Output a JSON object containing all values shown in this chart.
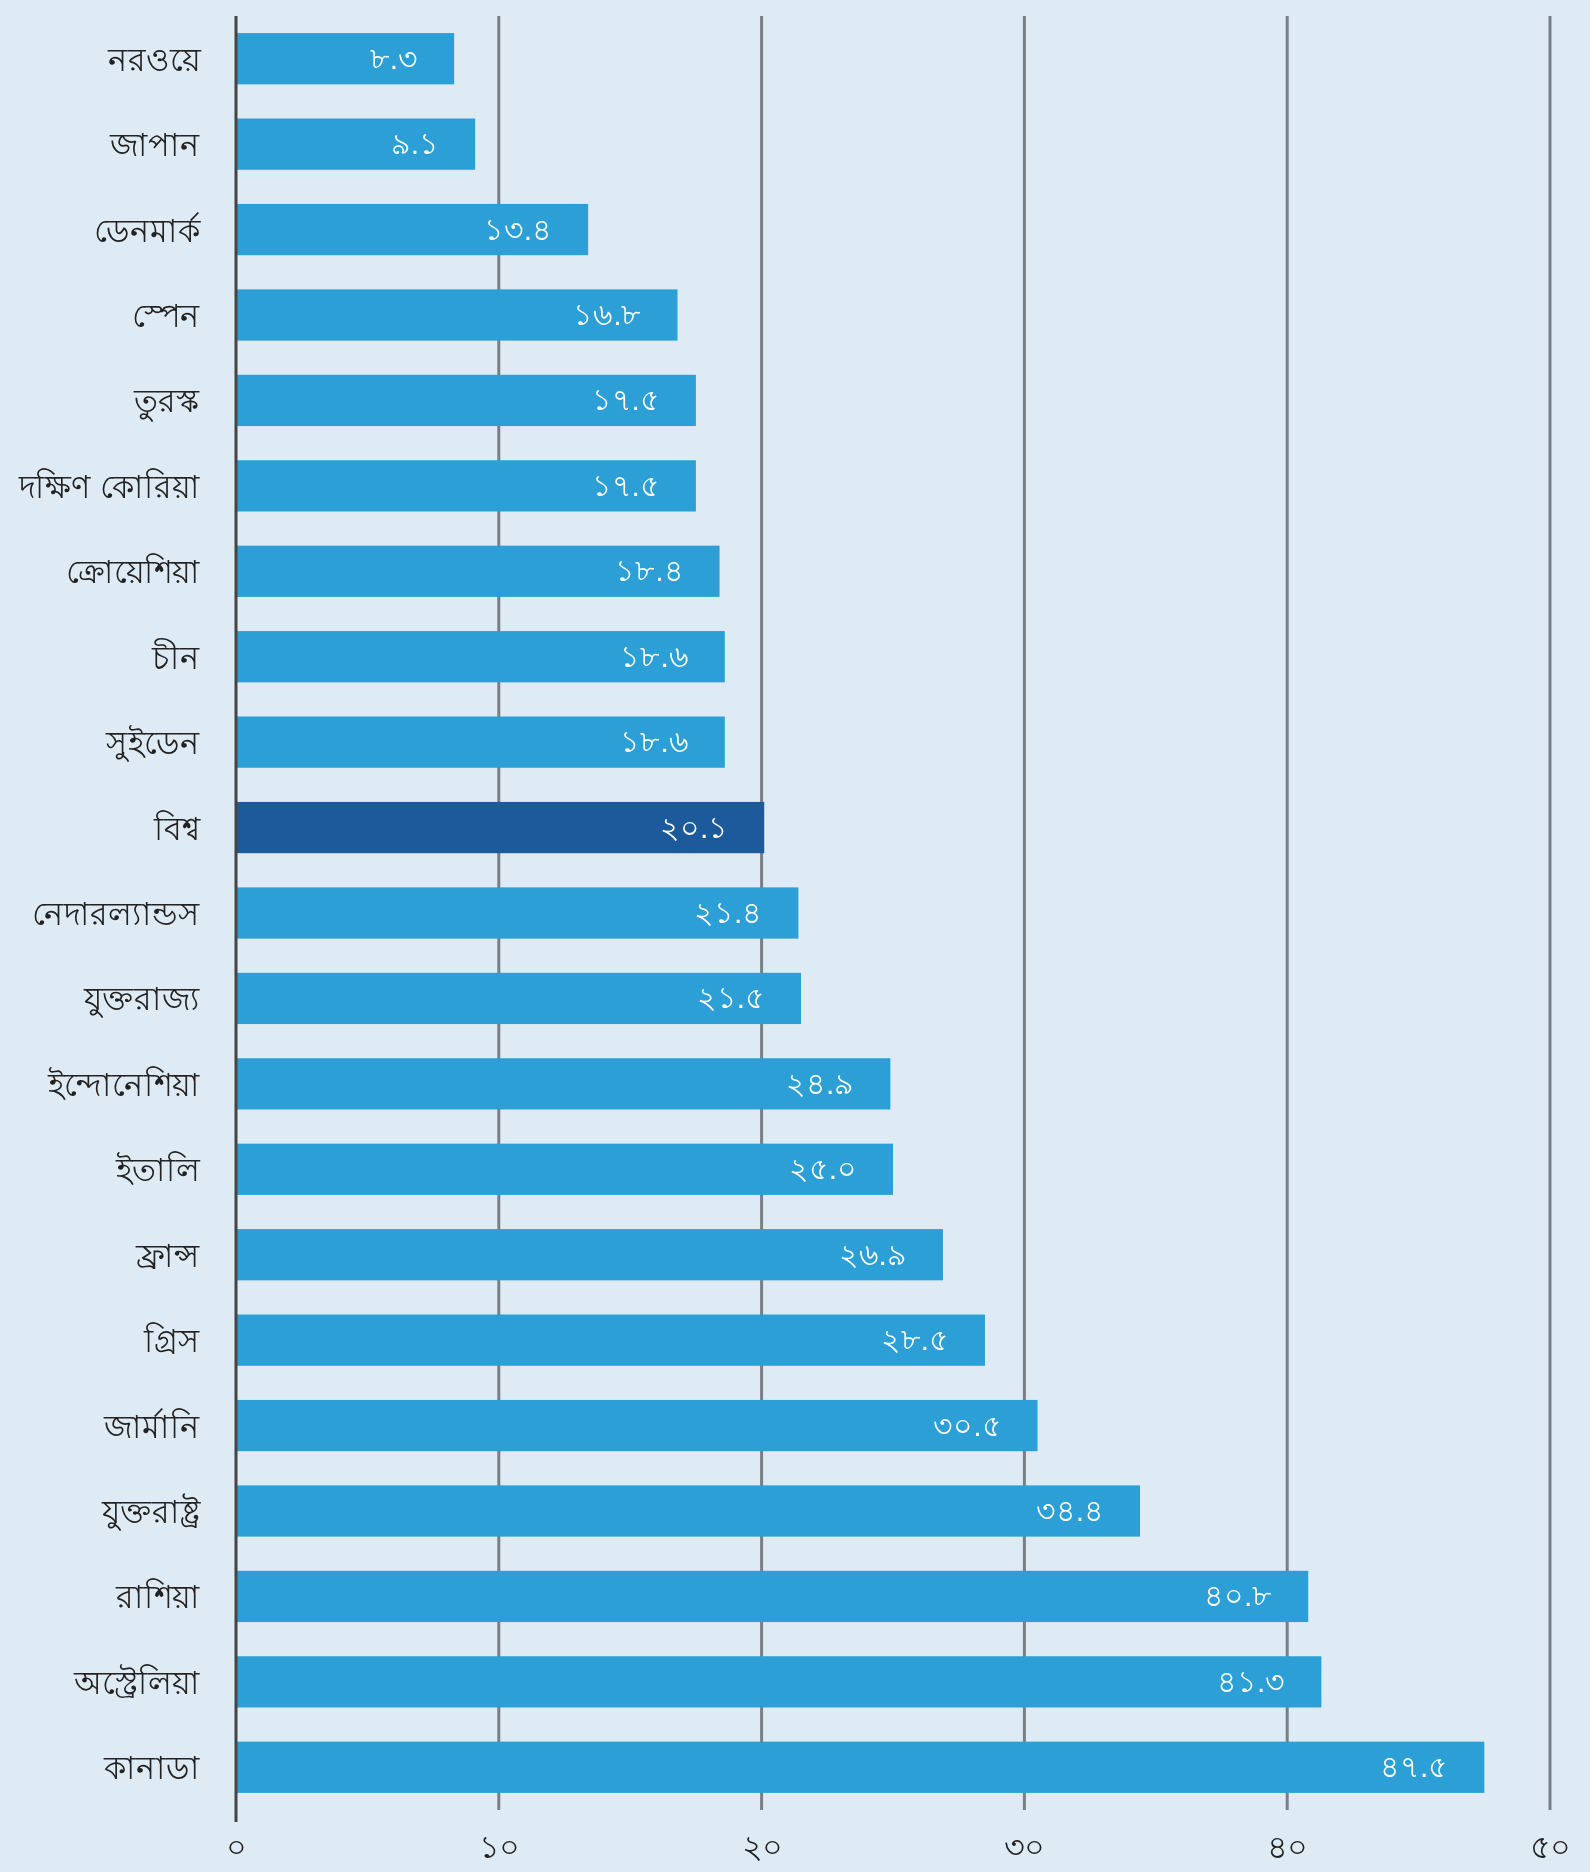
{
  "chart_data": {
    "type": "bar",
    "orientation": "horizontal",
    "categories": [
      "নরওয়ে",
      "জাপান",
      "ডেনমার্ক",
      "স্পেন",
      "তুরস্ক",
      "দক্ষিণ কোরিয়া",
      "ক্রোয়েশিয়া",
      "চীন",
      "সুইডেন",
      "বিশ্ব",
      "নেদারল্যান্ডস",
      "যুক্তরাজ্য",
      "ইন্দোনেশিয়া",
      "ইতালি",
      "ফ্রান্স",
      "গ্রিস",
      "জার্মানি",
      "যুক্তরাষ্ট্র",
      "রাশিয়া",
      "অস্ট্রেলিয়া",
      "কানাডা"
    ],
    "values": [
      8.3,
      9.1,
      13.4,
      16.8,
      17.5,
      17.5,
      18.4,
      18.6,
      18.6,
      20.1,
      21.4,
      21.5,
      24.9,
      25.0,
      26.9,
      28.5,
      30.5,
      34.4,
      40.8,
      41.3,
      47.5
    ],
    "value_labels": [
      "৮.৩",
      "৯.১",
      "১৩.৪",
      "১৬.৮",
      "১৭.৫",
      "১৭.৫",
      "১৮.৪",
      "১৮.৬",
      "১৮.৬",
      "২০.১",
      "২১.৪",
      "২১.৫",
      "২৪.৯",
      "২৫.০",
      "২৬.৯",
      "২৮.৫",
      "৩০.৫",
      "৩৪.৪",
      "৪০.৮",
      "৪১.৩",
      "৪৭.৫"
    ],
    "colors": [
      "#2ca0d6",
      "#2ca0d6",
      "#2ca0d6",
      "#2ca0d6",
      "#2ca0d6",
      "#2ca0d6",
      "#2ca0d6",
      "#2ca0d6",
      "#2ca0d6",
      "#1d5a9b",
      "#2ca0d6",
      "#2ca0d6",
      "#2ca0d6",
      "#2ca0d6",
      "#2ca0d6",
      "#2ca0d6",
      "#2ca0d6",
      "#2ca0d6",
      "#2ca0d6",
      "#2ca0d6",
      "#2ca0d6"
    ],
    "xlim": [
      0,
      50
    ],
    "xticks": [
      {
        "value": 0,
        "label": "০"
      },
      {
        "value": 10,
        "label": "১০"
      },
      {
        "value": 20,
        "label": "২০"
      },
      {
        "value": 30,
        "label": "৩০"
      },
      {
        "value": 40,
        "label": "৪০"
      },
      {
        "value": 50,
        "label": "৫০"
      }
    ],
    "grid": "x"
  }
}
